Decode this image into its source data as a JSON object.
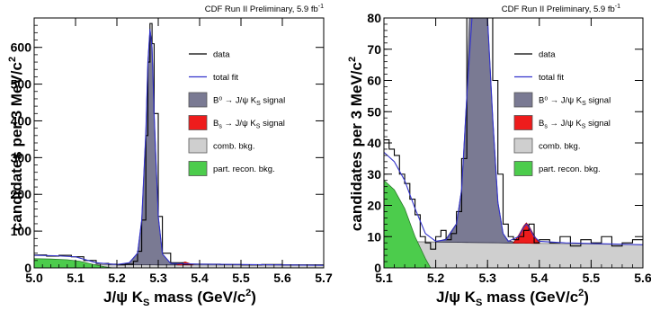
{
  "chart_data": [
    {
      "type": "line",
      "panel": "full-range",
      "run_label": "CDF Run II Preliminary, 5.9 fb",
      "run_label_sup": "-1",
      "ylabel_main": "candidates per 3 MeV/c",
      "ylabel_sup": "2",
      "xlabel_main": "J/ψ K",
      "xlabel_sub": "S",
      "xlabel_rest": " mass (GeV/c",
      "xlabel_sup": "2",
      "xlabel_end": ")",
      "xlim": [
        5.0,
        5.7
      ],
      "ylim": [
        0,
        680
      ],
      "xticks": [
        5.0,
        5.1,
        5.2,
        5.3,
        5.4,
        5.5,
        5.6,
        5.7
      ],
      "xtick_labels": [
        "5.0",
        "5.1",
        "5.2",
        "5.3",
        "5.4",
        "5.5",
        "5.6",
        "5.7"
      ],
      "yticks": [
        0,
        100,
        200,
        300,
        400,
        500,
        600
      ],
      "ytick_labels": [
        "0",
        "100",
        "200",
        "300",
        "400",
        "500",
        "600"
      ],
      "data": {
        "name": "data",
        "x": [
          5.0,
          5.03,
          5.06,
          5.09,
          5.12,
          5.15,
          5.18,
          5.2,
          5.22,
          5.24,
          5.25,
          5.26,
          5.27,
          5.275,
          5.28,
          5.285,
          5.29,
          5.3,
          5.31,
          5.33,
          5.36,
          5.4,
          5.45,
          5.5,
          5.55,
          5.6,
          5.65,
          5.7
        ],
        "y": [
          35,
          32,
          34,
          30,
          20,
          12,
          10,
          8,
          10,
          18,
          45,
          130,
          360,
          560,
          665,
          610,
          420,
          140,
          40,
          14,
          10,
          10,
          9,
          8,
          9,
          8,
          8,
          7
        ]
      },
      "total_fit": {
        "name": "total fit",
        "x": [
          5.0,
          5.05,
          5.1,
          5.15,
          5.2,
          5.23,
          5.25,
          5.26,
          5.27,
          5.275,
          5.28,
          5.285,
          5.29,
          5.3,
          5.31,
          5.33,
          5.37,
          5.4,
          5.5,
          5.6,
          5.7
        ],
        "y": [
          34,
          33,
          30,
          14,
          9,
          14,
          40,
          130,
          370,
          560,
          650,
          600,
          420,
          140,
          38,
          12,
          11,
          10,
          9,
          8,
          7
        ]
      },
      "b0_signal": {
        "name": "B0 → J/ψ KS signal",
        "x": [
          5.2,
          5.23,
          5.25,
          5.26,
          5.27,
          5.275,
          5.28,
          5.285,
          5.29,
          5.3,
          5.31,
          5.33,
          5.36
        ],
        "y": [
          0,
          5,
          32,
          122,
          362,
          552,
          642,
          592,
          412,
          132,
          30,
          4,
          0
        ]
      },
      "bs_signal": {
        "name": "Bs → J/ψ KS signal",
        "x": [
          5.345,
          5.355,
          5.365,
          5.375,
          5.385
        ],
        "y": [
          0,
          4,
          8,
          4,
          0
        ]
      },
      "comb_bkg": {
        "name": "comb. bkg.",
        "x": [
          5.0,
          5.7
        ],
        "y": [
          9,
          7
        ]
      },
      "part_recon_bkg": {
        "name": "part. recon. bkg.",
        "x": [
          5.0,
          5.04,
          5.08,
          5.11,
          5.14,
          5.17,
          5.19
        ],
        "y": [
          25,
          24,
          22,
          18,
          10,
          3,
          0
        ]
      },
      "legend": [
        {
          "label": "data",
          "kind": "line",
          "color": "#000000"
        },
        {
          "label": "total fit",
          "kind": "line",
          "color": "#3333cc"
        },
        {
          "label": "B⁰ → J/ψ K",
          "sub": "S",
          "label_tail": " signal",
          "kind": "box",
          "color": "#7a7a93"
        },
        {
          "label": "B",
          "sub": "s",
          "label_tail": " → J/ψ K",
          "sub2": "S",
          "label_tail2": " signal",
          "kind": "box",
          "color": "#ee1c1c"
        },
        {
          "label": "comb. bkg.",
          "kind": "box",
          "color": "#cfcfcf"
        },
        {
          "label": "part. recon. bkg.",
          "kind": "box",
          "color": "#4ccc4c"
        }
      ]
    },
    {
      "type": "line",
      "panel": "zoomed",
      "run_label": "CDF Run II Preliminary, 5.9 fb",
      "run_label_sup": "-1",
      "ylabel_main": "candidates per 3 MeV/c",
      "ylabel_sup": "2",
      "xlabel_main": "J/ψ K",
      "xlabel_sub": "S",
      "xlabel_rest": " mass (GeV/c",
      "xlabel_sup": "2",
      "xlabel_end": ")",
      "xlim": [
        5.1,
        5.6
      ],
      "ylim": [
        0,
        80
      ],
      "xticks": [
        5.1,
        5.2,
        5.3,
        5.4,
        5.5,
        5.6
      ],
      "xtick_labels": [
        "5.1",
        "5.2",
        "5.3",
        "5.4",
        "5.5",
        "5.6"
      ],
      "yticks": [
        0,
        10,
        20,
        30,
        40,
        50,
        60,
        70,
        80
      ],
      "ytick_labels": [
        "0",
        "10",
        "20",
        "30",
        "40",
        "50",
        "60",
        "70",
        "80"
      ],
      "data": {
        "name": "data",
        "x": [
          5.1,
          5.11,
          5.12,
          5.13,
          5.14,
          5.15,
          5.16,
          5.17,
          5.18,
          5.19,
          5.2,
          5.21,
          5.22,
          5.23,
          5.24,
          5.25,
          5.26,
          5.3,
          5.31,
          5.32,
          5.33,
          5.34,
          5.35,
          5.36,
          5.37,
          5.38,
          5.39,
          5.4,
          5.42,
          5.44,
          5.46,
          5.48,
          5.5,
          5.52,
          5.54,
          5.56,
          5.58,
          5.6
        ],
        "y": [
          41,
          38,
          36,
          30,
          27,
          22,
          17,
          10,
          8,
          6,
          10,
          12,
          9,
          11,
          18,
          35,
          80,
          80,
          60,
          30,
          14,
          10,
          9,
          10,
          12,
          14,
          8,
          9,
          8,
          10,
          7,
          9,
          8,
          10,
          7,
          8,
          9,
          7
        ]
      },
      "total_fit": {
        "name": "total fit",
        "x": [
          5.1,
          5.12,
          5.14,
          5.16,
          5.18,
          5.2,
          5.22,
          5.24,
          5.25,
          5.26,
          5.27,
          5.3,
          5.31,
          5.32,
          5.33,
          5.34,
          5.36,
          5.37,
          5.375,
          5.38,
          5.39,
          5.4,
          5.45,
          5.5,
          5.55,
          5.6
        ],
        "y": [
          37,
          34,
          28,
          19,
          11,
          8.5,
          9,
          14,
          25,
          55,
          80,
          80,
          48,
          21,
          11,
          8.5,
          10,
          13,
          14,
          13,
          10,
          8.5,
          8,
          7.8,
          7.6,
          7.4
        ]
      },
      "b0_signal": {
        "name": "B0 → J/ψ KS signal",
        "x": [
          5.2,
          5.22,
          5.24,
          5.25,
          5.26,
          5.265,
          5.3,
          5.31,
          5.32,
          5.33,
          5.34,
          5.36
        ],
        "y": [
          0,
          1,
          6,
          17,
          47,
          80,
          80,
          40,
          13,
          3,
          0.7,
          0
        ]
      },
      "bs_signal": {
        "name": "Bs → J/ψ KS signal",
        "x": [
          5.35,
          5.36,
          5.37,
          5.375,
          5.38,
          5.39,
          5.4
        ],
        "y": [
          0,
          2.5,
          5.5,
          6.5,
          5.5,
          2.5,
          0
        ]
      },
      "comb_bkg": {
        "name": "comb. bkg.",
        "x": [
          5.1,
          5.6
        ],
        "y": [
          8.5,
          7.4
        ]
      },
      "part_recon_bkg": {
        "name": "part. recon. bkg.",
        "x": [
          5.1,
          5.12,
          5.14,
          5.16,
          5.18,
          5.19
        ],
        "y": [
          28,
          25,
          19,
          10,
          3,
          0
        ]
      },
      "legend": [
        {
          "label": "data",
          "kind": "line",
          "color": "#000000"
        },
        {
          "label": "total fit",
          "kind": "line",
          "color": "#3333cc"
        },
        {
          "label": "B⁰ → J/ψ K",
          "sub": "S",
          "label_tail": " signal",
          "kind": "box",
          "color": "#7a7a93"
        },
        {
          "label": "B",
          "sub": "s",
          "label_tail": " → J/ψ K",
          "sub2": "S",
          "label_tail2": " signal",
          "kind": "box",
          "color": "#ee1c1c"
        },
        {
          "label": "comb. bkg.",
          "kind": "box",
          "color": "#cfcfcf"
        },
        {
          "label": "part. recon. bkg.",
          "kind": "box",
          "color": "#4ccc4c"
        }
      ]
    }
  ]
}
